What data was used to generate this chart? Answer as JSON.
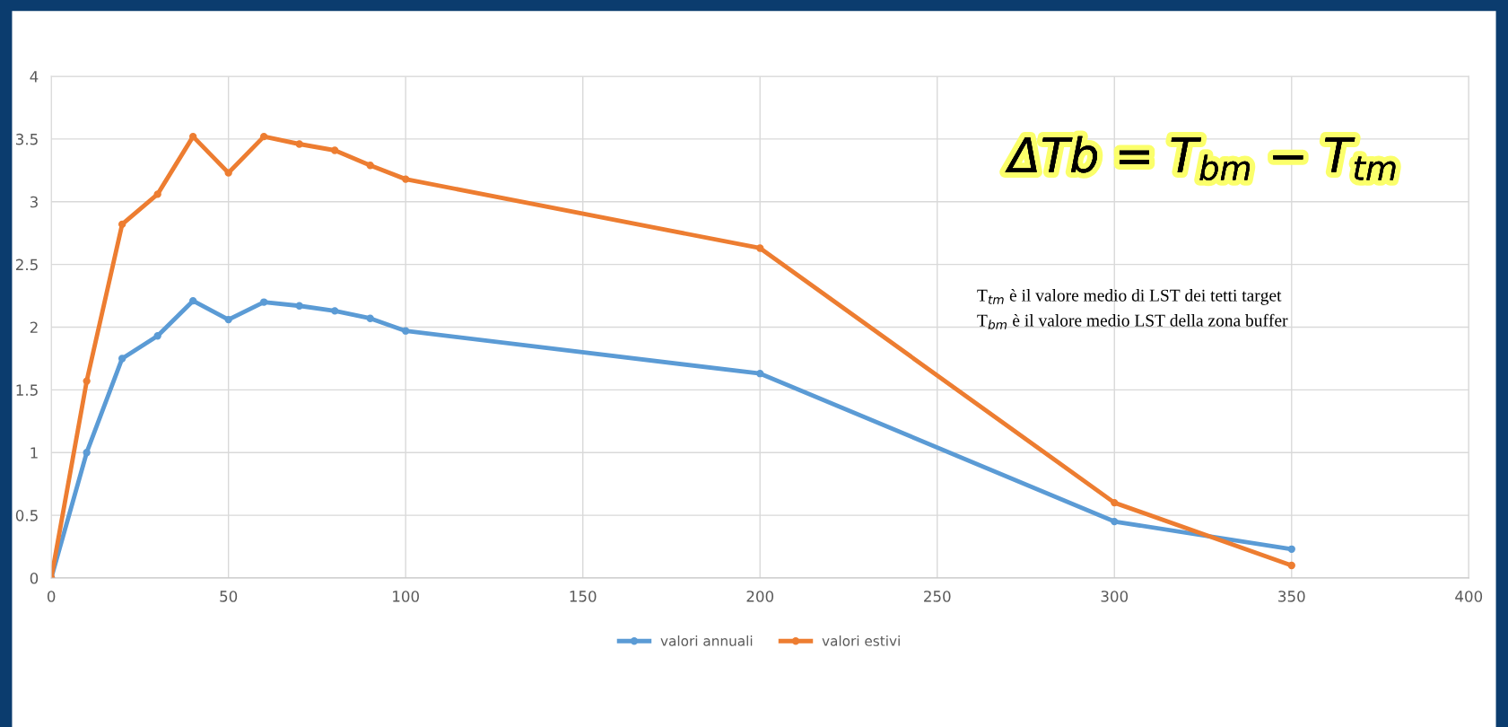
{
  "chart_data": {
    "type": "line",
    "x": [
      0,
      10,
      20,
      30,
      40,
      50,
      60,
      70,
      80,
      90,
      100,
      200,
      300,
      350
    ],
    "series": [
      {
        "name": "valori annuali",
        "color": "#5b9bd5",
        "values": [
          0,
          1.0,
          1.75,
          1.93,
          2.21,
          2.06,
          2.2,
          2.17,
          2.13,
          2.07,
          1.97,
          1.63,
          0.45,
          0.23
        ]
      },
      {
        "name": "valori estivi",
        "color": "#ed7d31",
        "values": [
          0,
          1.57,
          2.82,
          3.06,
          3.52,
          3.23,
          3.52,
          3.46,
          3.41,
          3.29,
          3.18,
          2.63,
          0.6,
          0.1
        ]
      }
    ],
    "xlim": [
      0,
      400
    ],
    "xticks": [
      0,
      50,
      100,
      150,
      200,
      250,
      300,
      350,
      400
    ],
    "ylim": [
      0,
      4
    ],
    "yticks": [
      0,
      0.5,
      1,
      1.5,
      2,
      2.5,
      3,
      3.5,
      4
    ],
    "grid": true,
    "legend": "bottom",
    "marker": "circle",
    "line_style": "solid",
    "annotations": [
      "ΔTb = T$_{bm}$ − T$_{tm}$",
      "T$_{tm}$ è il valore medio di LST dei tetti target",
      "T$_{bm}$ è il valore medio LST della zona buffer"
    ]
  }
}
